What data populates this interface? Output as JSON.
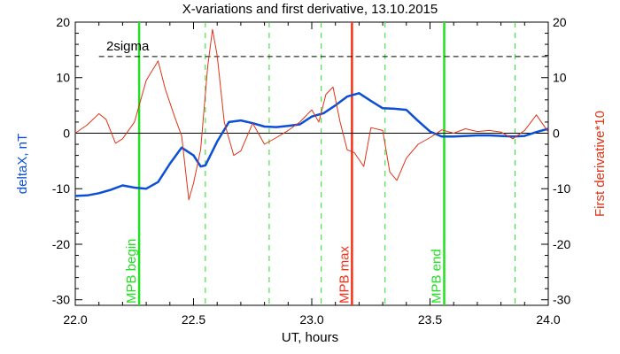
{
  "colors": {
    "deltax": "#0b4fd6",
    "derivative": "#e03316",
    "mpb_begin_end": "#22e022",
    "mpb_max": "#f23217",
    "axis": "#000000",
    "right_axis_label": "#e03316",
    "left_axis_label": "#0b4fd6"
  },
  "chart_data": {
    "type": "line",
    "title": "X-variations and first derivative, 13.10.2015",
    "xlabel": "UT, hours",
    "ylabel": "deltaX, nT",
    "ylabel_right": "First derivative*10",
    "xlim": [
      22.0,
      24.0
    ],
    "ylim": [
      -31,
      20
    ],
    "x_ticks": [
      22.0,
      22.5,
      23.0,
      23.5,
      24.0
    ],
    "x_tick_labels": [
      "22.0",
      "22.5",
      "23.0",
      "23.5",
      "24.0"
    ],
    "y_ticks": [
      20,
      10,
      0,
      -10,
      -20,
      -30
    ],
    "y_tick_labels": [
      "20",
      "10",
      "0",
      "-10",
      "-20",
      "-30"
    ],
    "grid": false,
    "series": [
      {
        "name": "deltaX, nT",
        "color": "#0b4fd6",
        "x": [
          22.0,
          22.05,
          22.1,
          22.15,
          22.2,
          22.25,
          22.3,
          22.35,
          22.4,
          22.45,
          22.5,
          22.53,
          22.55,
          22.6,
          22.65,
          22.7,
          22.75,
          22.8,
          22.85,
          22.9,
          22.95,
          23.0,
          23.05,
          23.1,
          23.15,
          23.2,
          23.25,
          23.3,
          23.35,
          23.4,
          23.45,
          23.5,
          23.55,
          23.6,
          23.65,
          23.7,
          23.75,
          23.8,
          23.85,
          23.9,
          23.95,
          24.0
        ],
        "y": [
          -11.3,
          -11.2,
          -10.8,
          -10.2,
          -9.4,
          -9.8,
          -10.0,
          -8.8,
          -5.5,
          -2.6,
          -4.0,
          -6.0,
          -5.8,
          -1.5,
          2.0,
          2.3,
          1.8,
          1.2,
          1.1,
          1.3,
          1.6,
          3.0,
          3.6,
          5.0,
          6.6,
          7.2,
          5.8,
          4.5,
          4.4,
          4.2,
          2.2,
          0.3,
          -0.6,
          -0.6,
          -0.5,
          -0.4,
          -0.4,
          -0.5,
          -0.6,
          -0.5,
          0.2,
          0.8
        ]
      },
      {
        "name": "First derivative*10",
        "color": "#e03316",
        "x": [
          22.0,
          22.05,
          22.1,
          22.13,
          22.17,
          22.2,
          22.25,
          22.3,
          22.35,
          22.38,
          22.42,
          22.45,
          22.48,
          22.5,
          22.53,
          22.56,
          22.58,
          22.6,
          22.63,
          22.67,
          22.7,
          22.75,
          22.8,
          22.85,
          22.9,
          22.95,
          23.0,
          23.03,
          23.06,
          23.09,
          23.12,
          23.15,
          23.18,
          23.22,
          23.25,
          23.3,
          23.33,
          23.36,
          23.4,
          23.45,
          23.5,
          23.55,
          23.6,
          23.65,
          23.7,
          23.75,
          23.8,
          23.85,
          23.9,
          23.95,
          24.0
        ],
        "y": [
          0.0,
          1.5,
          3.5,
          2.5,
          -1.8,
          -1.0,
          2.0,
          9.5,
          13.0,
          8.0,
          3.0,
          -0.5,
          -12.0,
          -9.0,
          -3.0,
          12.0,
          18.7,
          14.0,
          2.0,
          -4.0,
          -3.2,
          1.8,
          -2.0,
          -0.8,
          0.5,
          2.0,
          4.2,
          2.0,
          7.0,
          8.3,
          2.0,
          -3.0,
          -3.5,
          -6.0,
          1.0,
          0.5,
          -7.0,
          -8.5,
          -4.5,
          -2.0,
          -0.8,
          0.6,
          0.0,
          0.8,
          0.3,
          0.5,
          0.2,
          -1.0,
          0.5,
          3.3,
          0.2
        ]
      }
    ],
    "threshold": {
      "label": "2sigma",
      "y": 13.8
    },
    "zero_line": 0,
    "vertical_markers": [
      {
        "label": "MPB begin",
        "x": 22.27,
        "color": "#22e022",
        "style": "solid"
      },
      {
        "label": "MPB max",
        "x": 23.17,
        "color": "#f23217",
        "style": "solid"
      },
      {
        "label": "MPB end",
        "x": 23.56,
        "color": "#22e022",
        "style": "solid"
      }
    ],
    "dashed_verticals": [
      22.55,
      22.82,
      23.04,
      23.31,
      23.86
    ]
  }
}
